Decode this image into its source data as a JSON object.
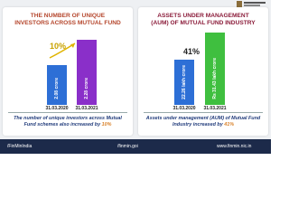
{
  "panels": [
    {
      "title_lines": [
        "THE NUMBER OF UNIQUE",
        "INVESTORS ACROSS MUTUAL FUND"
      ],
      "growth": "10%",
      "bars": [
        {
          "label": "2.08 crore",
          "date": "31.03.2020"
        },
        {
          "label": "2.28 crore",
          "date": "31.03.2021"
        }
      ],
      "caption": "The number of unique investors across Mutual Fund schemes also increased by"
    },
    {
      "title_lines": [
        "ASSETS UNDER MANAGEMENT",
        "(AUM) OF MUTUAL FUND INDUSTRY"
      ],
      "growth": "41%",
      "bars": [
        {
          "label": "22.26 lakh crore",
          "date": "31.03.2020"
        },
        {
          "label": "Rs 31.43 lakh crore",
          "date": "31.03.2021"
        }
      ],
      "caption": "Assets under management (AUM) of Mutual Fund Industry increased by"
    }
  ],
  "footer": [
    "/FinMinIndia",
    "/finmin.goi",
    "www.finmin.nic.in"
  ]
}
